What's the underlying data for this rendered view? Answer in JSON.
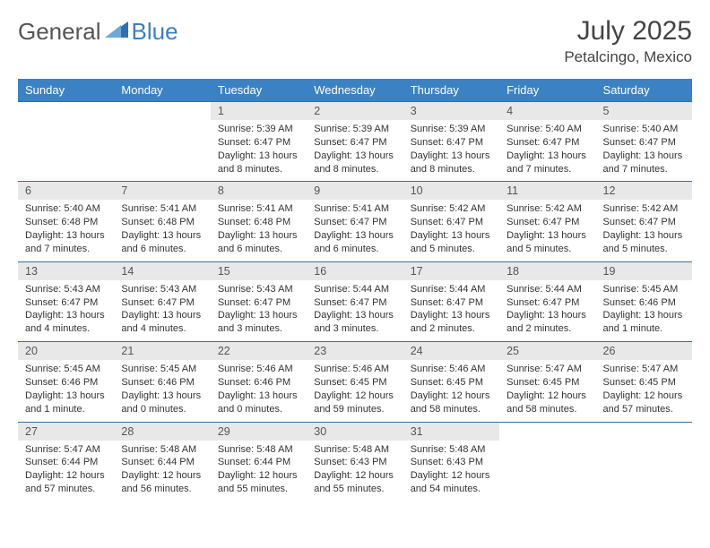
{
  "logo": {
    "part1": "General",
    "part2": "Blue"
  },
  "title": "July 2025",
  "location": "Petalcingo, Mexico",
  "colors": {
    "header_bg": "#3b82c4",
    "header_text": "#ffffff",
    "daynum_bg": "#e8e8e8",
    "border": "#3b6fa0",
    "logo_gray": "#555555",
    "logo_blue": "#3b7fc4"
  },
  "weekdays": [
    "Sunday",
    "Monday",
    "Tuesday",
    "Wednesday",
    "Thursday",
    "Friday",
    "Saturday"
  ],
  "weeks": [
    [
      null,
      null,
      {
        "n": "1",
        "sr": "5:39 AM",
        "ss": "6:47 PM",
        "dl": "13 hours and 8 minutes."
      },
      {
        "n": "2",
        "sr": "5:39 AM",
        "ss": "6:47 PM",
        "dl": "13 hours and 8 minutes."
      },
      {
        "n": "3",
        "sr": "5:39 AM",
        "ss": "6:47 PM",
        "dl": "13 hours and 8 minutes."
      },
      {
        "n": "4",
        "sr": "5:40 AM",
        "ss": "6:47 PM",
        "dl": "13 hours and 7 minutes."
      },
      {
        "n": "5",
        "sr": "5:40 AM",
        "ss": "6:47 PM",
        "dl": "13 hours and 7 minutes."
      }
    ],
    [
      {
        "n": "6",
        "sr": "5:40 AM",
        "ss": "6:48 PM",
        "dl": "13 hours and 7 minutes."
      },
      {
        "n": "7",
        "sr": "5:41 AM",
        "ss": "6:48 PM",
        "dl": "13 hours and 6 minutes."
      },
      {
        "n": "8",
        "sr": "5:41 AM",
        "ss": "6:48 PM",
        "dl": "13 hours and 6 minutes."
      },
      {
        "n": "9",
        "sr": "5:41 AM",
        "ss": "6:47 PM",
        "dl": "13 hours and 6 minutes."
      },
      {
        "n": "10",
        "sr": "5:42 AM",
        "ss": "6:47 PM",
        "dl": "13 hours and 5 minutes."
      },
      {
        "n": "11",
        "sr": "5:42 AM",
        "ss": "6:47 PM",
        "dl": "13 hours and 5 minutes."
      },
      {
        "n": "12",
        "sr": "5:42 AM",
        "ss": "6:47 PM",
        "dl": "13 hours and 5 minutes."
      }
    ],
    [
      {
        "n": "13",
        "sr": "5:43 AM",
        "ss": "6:47 PM",
        "dl": "13 hours and 4 minutes."
      },
      {
        "n": "14",
        "sr": "5:43 AM",
        "ss": "6:47 PM",
        "dl": "13 hours and 4 minutes."
      },
      {
        "n": "15",
        "sr": "5:43 AM",
        "ss": "6:47 PM",
        "dl": "13 hours and 3 minutes."
      },
      {
        "n": "16",
        "sr": "5:44 AM",
        "ss": "6:47 PM",
        "dl": "13 hours and 3 minutes."
      },
      {
        "n": "17",
        "sr": "5:44 AM",
        "ss": "6:47 PM",
        "dl": "13 hours and 2 minutes."
      },
      {
        "n": "18",
        "sr": "5:44 AM",
        "ss": "6:47 PM",
        "dl": "13 hours and 2 minutes."
      },
      {
        "n": "19",
        "sr": "5:45 AM",
        "ss": "6:46 PM",
        "dl": "13 hours and 1 minute."
      }
    ],
    [
      {
        "n": "20",
        "sr": "5:45 AM",
        "ss": "6:46 PM",
        "dl": "13 hours and 1 minute."
      },
      {
        "n": "21",
        "sr": "5:45 AM",
        "ss": "6:46 PM",
        "dl": "13 hours and 0 minutes."
      },
      {
        "n": "22",
        "sr": "5:46 AM",
        "ss": "6:46 PM",
        "dl": "13 hours and 0 minutes."
      },
      {
        "n": "23",
        "sr": "5:46 AM",
        "ss": "6:45 PM",
        "dl": "12 hours and 59 minutes."
      },
      {
        "n": "24",
        "sr": "5:46 AM",
        "ss": "6:45 PM",
        "dl": "12 hours and 58 minutes."
      },
      {
        "n": "25",
        "sr": "5:47 AM",
        "ss": "6:45 PM",
        "dl": "12 hours and 58 minutes."
      },
      {
        "n": "26",
        "sr": "5:47 AM",
        "ss": "6:45 PM",
        "dl": "12 hours and 57 minutes."
      }
    ],
    [
      {
        "n": "27",
        "sr": "5:47 AM",
        "ss": "6:44 PM",
        "dl": "12 hours and 57 minutes."
      },
      {
        "n": "28",
        "sr": "5:48 AM",
        "ss": "6:44 PM",
        "dl": "12 hours and 56 minutes."
      },
      {
        "n": "29",
        "sr": "5:48 AM",
        "ss": "6:44 PM",
        "dl": "12 hours and 55 minutes."
      },
      {
        "n": "30",
        "sr": "5:48 AM",
        "ss": "6:43 PM",
        "dl": "12 hours and 55 minutes."
      },
      {
        "n": "31",
        "sr": "5:48 AM",
        "ss": "6:43 PM",
        "dl": "12 hours and 54 minutes."
      },
      null,
      null
    ]
  ],
  "labels": {
    "sunrise": "Sunrise:",
    "sunset": "Sunset:",
    "daylight": "Daylight:"
  }
}
